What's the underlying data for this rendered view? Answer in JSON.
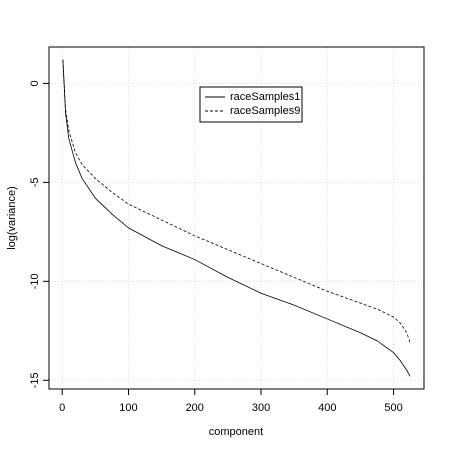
{
  "chart_data": {
    "type": "line",
    "x_label": "component",
    "y_label": "log(variance)",
    "x": [
      1,
      5,
      10,
      20,
      30,
      50,
      75,
      100,
      150,
      200,
      250,
      300,
      350,
      400,
      450,
      475,
      500,
      510,
      520,
      525
    ],
    "series": [
      {
        "name": "raceSamples1",
        "color": "#000000",
        "dash": "solid",
        "values": [
          1.2,
          -1.5,
          -2.8,
          -4.0,
          -4.8,
          -5.8,
          -6.6,
          -7.3,
          -8.2,
          -8.9,
          -9.8,
          -10.6,
          -11.2,
          -11.9,
          -12.6,
          -13.0,
          -13.6,
          -14.0,
          -14.5,
          -14.8
        ]
      },
      {
        "name": "raceSamples9",
        "color": "#000000",
        "dash": "dashed",
        "values": [
          1.2,
          -1.3,
          -2.4,
          -3.5,
          -4.1,
          -4.8,
          -5.5,
          -6.1,
          -6.9,
          -7.7,
          -8.4,
          -9.1,
          -9.8,
          -10.5,
          -11.1,
          -11.4,
          -11.8,
          -12.1,
          -12.6,
          -13.1
        ]
      }
    ],
    "xlim": [
      -19.96,
      545.96
    ],
    "xticks": [
      0,
      100,
      200,
      300,
      400,
      500
    ],
    "ylim": [
      -15.44,
      1.84
    ],
    "yticks": [
      -15,
      -10,
      -5,
      0
    ],
    "grid": true,
    "legend": "top"
  }
}
